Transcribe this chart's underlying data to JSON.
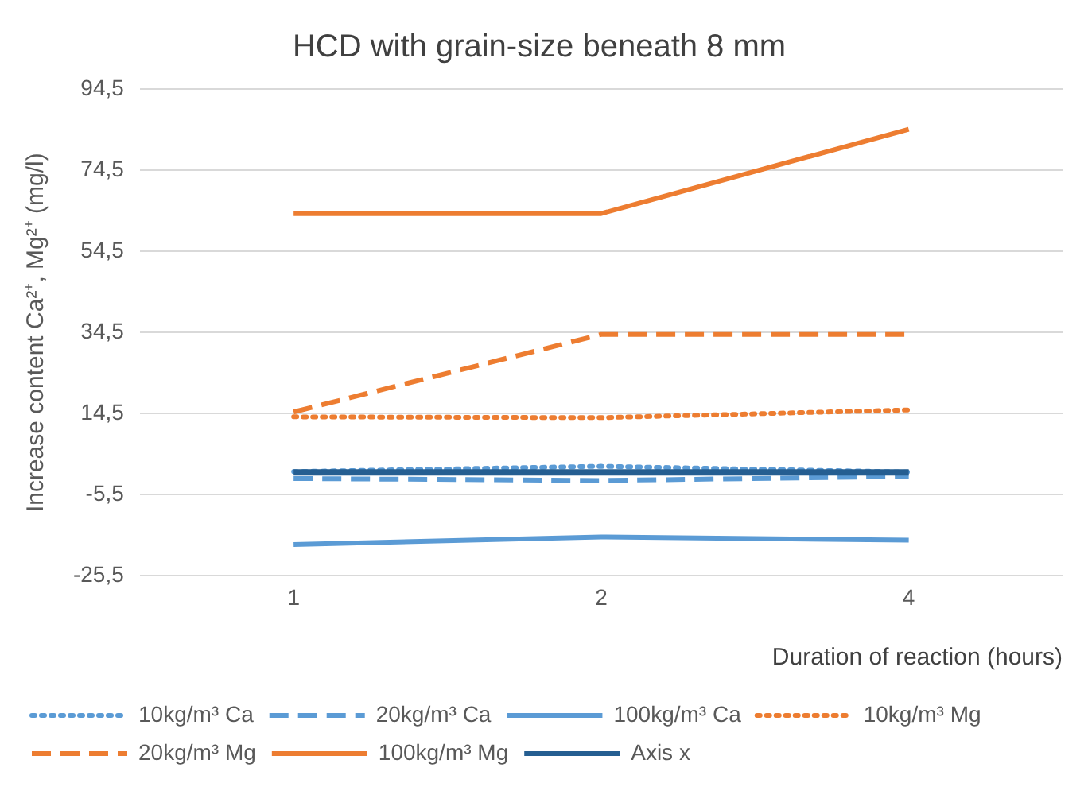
{
  "chart_data": {
    "type": "line",
    "title": "HCD with grain-size beneath 8 mm",
    "xlabel": "Duration of reaction (hours)",
    "ylabel": "Increase content Ca²⁺, Mg²⁺ (mg/l)",
    "categories": [
      "1",
      "2",
      "4"
    ],
    "series": [
      {
        "name": "10kg/m³ Ca",
        "color": "#5b9bd5",
        "line_style": "dotted",
        "values": [
          0.2,
          1.5,
          0.1
        ]
      },
      {
        "name": "20kg/m³ Ca",
        "color": "#5b9bd5",
        "line_style": "dashed",
        "values": [
          -1.5,
          -2.0,
          -1.0
        ]
      },
      {
        "name": "100kg/m³ Ca",
        "color": "#5b9bd5",
        "line_style": "solid",
        "values": [
          -17.8,
          -15.9,
          -16.7
        ]
      },
      {
        "name": "10kg/m³ Mg",
        "color": "#ed7d31",
        "line_style": "dotted",
        "values": [
          13.7,
          13.5,
          15.4
        ]
      },
      {
        "name": "20kg/m³ Mg",
        "color": "#ed7d31",
        "line_style": "dashed",
        "values": [
          14.9,
          34.0,
          34.0
        ]
      },
      {
        "name": "100kg/m³ Mg",
        "color": "#ed7d31",
        "line_style": "solid",
        "values": [
          63.8,
          63.8,
          84.6
        ]
      },
      {
        "name": "Axis x",
        "color": "#255e91",
        "line_style": "solid",
        "values": [
          0,
          0,
          0
        ]
      }
    ],
    "ylim": [
      -25.5,
      94.5
    ],
    "yticks": [
      {
        "value": -25.5,
        "label": "-25,5"
      },
      {
        "value": -5.5,
        "label": "-5,5"
      },
      {
        "value": 14.5,
        "label": "14,5"
      },
      {
        "value": 34.5,
        "label": "34,5"
      },
      {
        "value": 54.5,
        "label": "54,5"
      },
      {
        "value": 74.5,
        "label": "74,5"
      },
      {
        "value": 94.5,
        "label": "94,5"
      }
    ],
    "grid": "y",
    "legend": "bottom",
    "marker": "none"
  }
}
